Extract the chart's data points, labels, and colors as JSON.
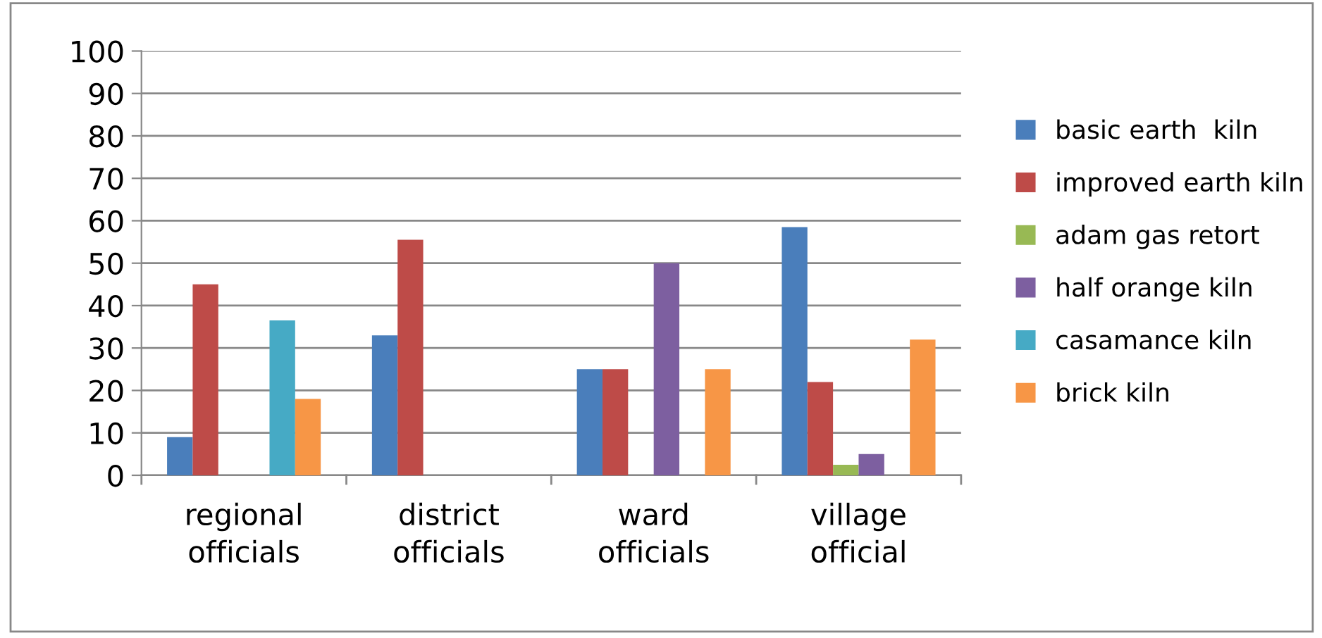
{
  "chart_data": {
    "type": "bar",
    "categories": [
      "regional\nofficials",
      "district\nofficials",
      "ward\nofficials",
      "village\nofficial"
    ],
    "series": [
      {
        "name": "basic earth  kiln",
        "color": "#4a7ebb",
        "values": [
          9,
          33,
          25,
          58.5
        ]
      },
      {
        "name": "improved earth kiln",
        "color": "#be4b48",
        "values": [
          45,
          55.5,
          25,
          22
        ]
      },
      {
        "name": "adam gas retort",
        "color": "#98b954",
        "values": [
          null,
          null,
          null,
          2.5
        ]
      },
      {
        "name": "half orange kiln",
        "color": "#7d5fa0",
        "values": [
          null,
          null,
          50,
          5
        ]
      },
      {
        "name": "casamance kiln",
        "color": "#46aac5",
        "values": [
          36.5,
          null,
          null,
          null
        ]
      },
      {
        "name": "brick kiln",
        "color": "#f79646",
        "values": [
          18,
          null,
          25,
          32
        ]
      }
    ],
    "ylim": [
      0,
      100
    ],
    "yticks": [
      0,
      10,
      20,
      30,
      40,
      50,
      60,
      70,
      80,
      90,
      100
    ],
    "grid": "y",
    "legend": "right"
  }
}
